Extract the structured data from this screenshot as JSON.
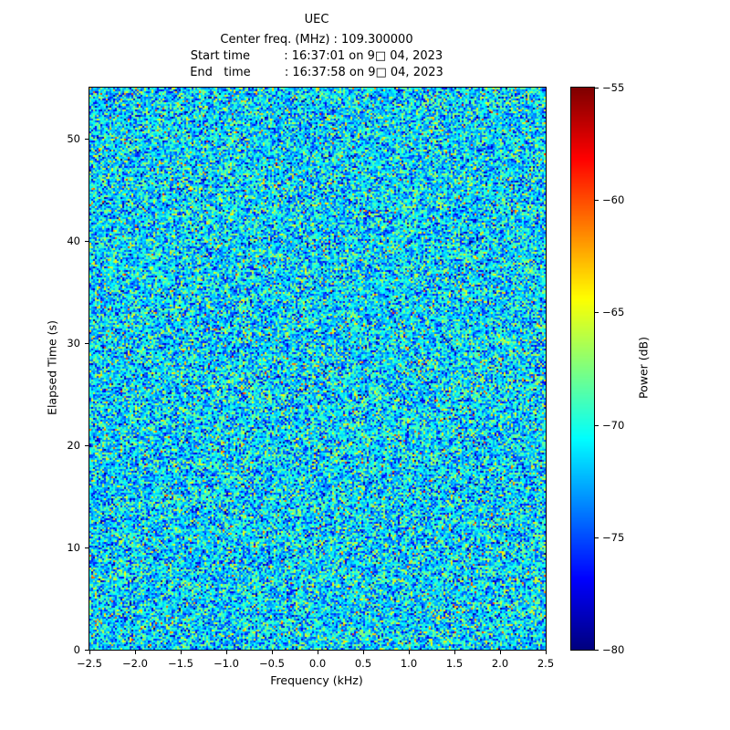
{
  "header": {
    "title": "UEC",
    "lines": [
      "Center freq. (MHz) : 109.300000",
      "Start time         : 16:37:01 on 9□ 04, 2023",
      "End   time         : 16:37:58 on 9□ 04, 2023"
    ]
  },
  "chart_data": {
    "type": "heatmap",
    "title": "UEC",
    "subtitle_lines": [
      "Center freq. (MHz) : 109.300000",
      "Start time         : 16:37:01 on 9□ 04, 2023",
      "End   time         : 16:37:58 on 9□ 04, 2023"
    ],
    "xlabel": "Frequency (kHz)",
    "ylabel": "Elapsed Time (s)",
    "xlim": [
      -2.5,
      2.5
    ],
    "ylim": [
      0,
      55
    ],
    "grid": false,
    "xticks": [
      {
        "label": "−2.5",
        "value": -2.5
      },
      {
        "label": "−2.0",
        "value": -2.0
      },
      {
        "label": "−1.5",
        "value": -1.5
      },
      {
        "label": "−1.0",
        "value": -1.0
      },
      {
        "label": "−0.5",
        "value": -0.5
      },
      {
        "label": "0.0",
        "value": 0.0
      },
      {
        "label": "0.5",
        "value": 0.5
      },
      {
        "label": "1.0",
        "value": 1.0
      },
      {
        "label": "1.5",
        "value": 1.5
      },
      {
        "label": "2.0",
        "value": 2.0
      },
      {
        "label": "2.5",
        "value": 2.5
      }
    ],
    "yticks": [
      {
        "label": "0",
        "value": 0
      },
      {
        "label": "10",
        "value": 10
      },
      {
        "label": "20",
        "value": 20
      },
      {
        "label": "30",
        "value": 30
      },
      {
        "label": "40",
        "value": 40
      },
      {
        "label": "50",
        "value": 50
      }
    ],
    "colorbar": {
      "label": "Power (dB)",
      "vmin": -80,
      "vmax": -55,
      "colormap": "jet",
      "ticks": [
        {
          "label": "−55",
          "value": -55
        },
        {
          "label": "−60",
          "value": -60
        },
        {
          "label": "−65",
          "value": -65
        },
        {
          "label": "−70",
          "value": -70
        },
        {
          "label": "−75",
          "value": -75
        },
        {
          "label": "−80",
          "value": -80
        }
      ]
    },
    "noise_model": {
      "description": "featureless random speckle noise filling the whole spectrogram, mostly cyan/blue (≈ −68 to −75 dB) with sparse green-yellow and dark-blue specks",
      "distribution": "gaussian",
      "mean_db": -71.5,
      "std_db": 3.2,
      "sparkle_fraction": 0.015,
      "sparkle_min_db": -66,
      "sparkle_max_db": -59,
      "seed": 7,
      "rows": 308,
      "cols": 250
    }
  }
}
